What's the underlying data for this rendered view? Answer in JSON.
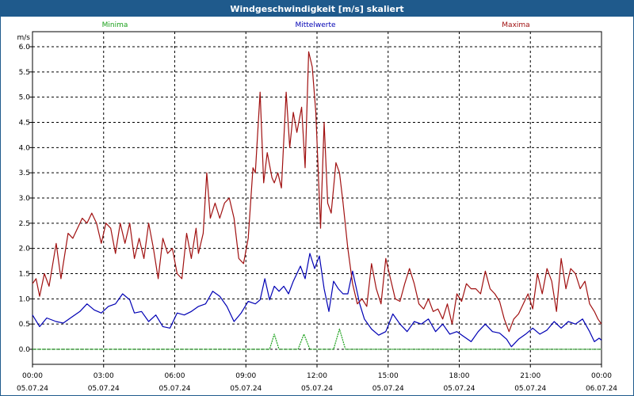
{
  "title": "Windgeschwindigkeit [m/s] skaliert",
  "colors": {
    "header_bg": "#1f5a8c",
    "min": "#1aa01a",
    "mean": "#0000b4",
    "max": "#a01010"
  },
  "chart_data": {
    "type": "line",
    "title": "Windgeschwindigkeit [m/s] skaliert",
    "ylabel": "m/s",
    "ylim": [
      0,
      6.0
    ],
    "xlim_hours": [
      0,
      24
    ],
    "grid": true,
    "legend_placement": "top",
    "y_ticks": [
      "0.0",
      "0.5",
      "1.0",
      "1.5",
      "2.0",
      "2.5",
      "3.0",
      "3.5",
      "4.0",
      "4.5",
      "5.0",
      "5.5",
      "6.0"
    ],
    "x_ticks": [
      {
        "time": "00:00",
        "date": "05.07.24"
      },
      {
        "time": "03:00",
        "date": "05.07.24"
      },
      {
        "time": "06:00",
        "date": "05.07.24"
      },
      {
        "time": "09:00",
        "date": "05.07.24"
      },
      {
        "time": "12:00",
        "date": "05.07.24"
      },
      {
        "time": "15:00",
        "date": "05.07.24"
      },
      {
        "time": "18:00",
        "date": "05.07.24"
      },
      {
        "time": "21:00",
        "date": "05.07.24"
      },
      {
        "time": "00:00",
        "date": "06.07.24"
      }
    ],
    "series": [
      {
        "name": "Minima",
        "color": "#1aa01a",
        "points": [
          [
            0,
            0
          ],
          [
            10,
            0
          ],
          [
            10.2,
            0.3
          ],
          [
            10.4,
            0
          ],
          [
            11.2,
            0
          ],
          [
            11.45,
            0.3
          ],
          [
            11.7,
            0
          ],
          [
            12.7,
            0
          ],
          [
            12.95,
            0.4
          ],
          [
            13.2,
            0
          ],
          [
            24,
            0
          ]
        ]
      },
      {
        "name": "Mittelwerte",
        "color": "#0000b4",
        "points": [
          [
            0.0,
            0.68
          ],
          [
            0.3,
            0.45
          ],
          [
            0.6,
            0.62
          ],
          [
            1.0,
            0.55
          ],
          [
            1.3,
            0.52
          ],
          [
            1.6,
            0.62
          ],
          [
            2.0,
            0.75
          ],
          [
            2.3,
            0.9
          ],
          [
            2.6,
            0.78
          ],
          [
            2.9,
            0.72
          ],
          [
            3.2,
            0.85
          ],
          [
            3.5,
            0.9
          ],
          [
            3.8,
            1.1
          ],
          [
            4.1,
            0.98
          ],
          [
            4.3,
            0.72
          ],
          [
            4.6,
            0.75
          ],
          [
            4.9,
            0.55
          ],
          [
            5.2,
            0.68
          ],
          [
            5.5,
            0.45
          ],
          [
            5.8,
            0.42
          ],
          [
            6.1,
            0.72
          ],
          [
            6.4,
            0.68
          ],
          [
            6.7,
            0.75
          ],
          [
            7.0,
            0.85
          ],
          [
            7.3,
            0.9
          ],
          [
            7.6,
            1.15
          ],
          [
            7.9,
            1.05
          ],
          [
            8.2,
            0.85
          ],
          [
            8.5,
            0.55
          ],
          [
            8.8,
            0.72
          ],
          [
            9.1,
            0.95
          ],
          [
            9.4,
            0.9
          ],
          [
            9.6,
            0.98
          ],
          [
            9.8,
            1.4
          ],
          [
            10.0,
            0.98
          ],
          [
            10.2,
            1.25
          ],
          [
            10.4,
            1.15
          ],
          [
            10.6,
            1.25
          ],
          [
            10.8,
            1.1
          ],
          [
            11.0,
            1.35
          ],
          [
            11.3,
            1.65
          ],
          [
            11.5,
            1.4
          ],
          [
            11.7,
            1.9
          ],
          [
            11.9,
            1.6
          ],
          [
            12.1,
            1.85
          ],
          [
            12.3,
            1.2
          ],
          [
            12.5,
            0.75
          ],
          [
            12.7,
            1.35
          ],
          [
            12.9,
            1.2
          ],
          [
            13.1,
            1.1
          ],
          [
            13.3,
            1.1
          ],
          [
            13.5,
            1.55
          ],
          [
            13.8,
            0.9
          ],
          [
            14.0,
            0.6
          ],
          [
            14.3,
            0.4
          ],
          [
            14.6,
            0.28
          ],
          [
            14.9,
            0.35
          ],
          [
            15.2,
            0.7
          ],
          [
            15.5,
            0.5
          ],
          [
            15.8,
            0.35
          ],
          [
            16.1,
            0.55
          ],
          [
            16.4,
            0.5
          ],
          [
            16.7,
            0.6
          ],
          [
            17.0,
            0.35
          ],
          [
            17.3,
            0.5
          ],
          [
            17.6,
            0.3
          ],
          [
            17.9,
            0.35
          ],
          [
            18.2,
            0.25
          ],
          [
            18.5,
            0.15
          ],
          [
            18.8,
            0.35
          ],
          [
            19.1,
            0.5
          ],
          [
            19.4,
            0.35
          ],
          [
            19.7,
            0.32
          ],
          [
            20.0,
            0.2
          ],
          [
            20.2,
            0.05
          ],
          [
            20.5,
            0.2
          ],
          [
            20.8,
            0.3
          ],
          [
            21.1,
            0.42
          ],
          [
            21.4,
            0.3
          ],
          [
            21.7,
            0.38
          ],
          [
            22.0,
            0.55
          ],
          [
            22.3,
            0.42
          ],
          [
            22.6,
            0.55
          ],
          [
            22.9,
            0.5
          ],
          [
            23.2,
            0.6
          ],
          [
            23.5,
            0.35
          ],
          [
            23.7,
            0.15
          ],
          [
            23.9,
            0.22
          ],
          [
            24.0,
            0.18
          ]
        ]
      },
      {
        "name": "Maxima",
        "color": "#a01010",
        "points": [
          [
            0.0,
            1.3
          ],
          [
            0.15,
            1.4
          ],
          [
            0.3,
            1.05
          ],
          [
            0.5,
            1.5
          ],
          [
            0.7,
            1.25
          ],
          [
            1.0,
            2.1
          ],
          [
            1.2,
            1.4
          ],
          [
            1.5,
            2.3
          ],
          [
            1.7,
            2.2
          ],
          [
            1.9,
            2.4
          ],
          [
            2.1,
            2.6
          ],
          [
            2.3,
            2.5
          ],
          [
            2.5,
            2.7
          ],
          [
            2.7,
            2.5
          ],
          [
            2.9,
            2.1
          ],
          [
            3.1,
            2.5
          ],
          [
            3.3,
            2.4
          ],
          [
            3.5,
            1.9
          ],
          [
            3.7,
            2.5
          ],
          [
            3.9,
            2.1
          ],
          [
            4.1,
            2.5
          ],
          [
            4.3,
            1.8
          ],
          [
            4.5,
            2.2
          ],
          [
            4.7,
            1.8
          ],
          [
            4.9,
            2.5
          ],
          [
            5.1,
            2.0
          ],
          [
            5.3,
            1.4
          ],
          [
            5.5,
            2.2
          ],
          [
            5.7,
            1.9
          ],
          [
            5.9,
            2.0
          ],
          [
            6.1,
            1.5
          ],
          [
            6.3,
            1.4
          ],
          [
            6.5,
            2.3
          ],
          [
            6.7,
            1.8
          ],
          [
            6.9,
            2.4
          ],
          [
            7.0,
            1.9
          ],
          [
            7.2,
            2.3
          ],
          [
            7.35,
            3.5
          ],
          [
            7.5,
            2.6
          ],
          [
            7.7,
            2.9
          ],
          [
            7.9,
            2.6
          ],
          [
            8.1,
            2.9
          ],
          [
            8.3,
            3.0
          ],
          [
            8.5,
            2.6
          ],
          [
            8.7,
            1.8
          ],
          [
            8.9,
            1.7
          ],
          [
            9.1,
            2.2
          ],
          [
            9.3,
            3.6
          ],
          [
            9.4,
            3.5
          ],
          [
            9.6,
            5.1
          ],
          [
            9.75,
            3.3
          ],
          [
            9.9,
            3.9
          ],
          [
            10.1,
            3.4
          ],
          [
            10.2,
            3.3
          ],
          [
            10.35,
            3.5
          ],
          [
            10.5,
            3.2
          ],
          [
            10.7,
            5.1
          ],
          [
            10.85,
            4.0
          ],
          [
            11.0,
            4.7
          ],
          [
            11.15,
            4.3
          ],
          [
            11.35,
            4.8
          ],
          [
            11.5,
            3.6
          ],
          [
            11.65,
            5.9
          ],
          [
            11.8,
            5.6
          ],
          [
            11.95,
            4.7
          ],
          [
            12.15,
            2.4
          ],
          [
            12.3,
            4.5
          ],
          [
            12.45,
            2.9
          ],
          [
            12.6,
            2.7
          ],
          [
            12.8,
            3.7
          ],
          [
            12.95,
            3.5
          ],
          [
            13.1,
            2.9
          ],
          [
            13.3,
            2.0
          ],
          [
            13.5,
            1.3
          ],
          [
            13.7,
            0.9
          ],
          [
            13.9,
            1.0
          ],
          [
            14.1,
            0.85
          ],
          [
            14.3,
            1.7
          ],
          [
            14.5,
            1.2
          ],
          [
            14.7,
            0.9
          ],
          [
            14.9,
            1.8
          ],
          [
            15.1,
            1.4
          ],
          [
            15.3,
            1.0
          ],
          [
            15.5,
            0.95
          ],
          [
            15.7,
            1.3
          ],
          [
            15.9,
            1.6
          ],
          [
            16.1,
            1.3
          ],
          [
            16.3,
            0.9
          ],
          [
            16.5,
            0.8
          ],
          [
            16.7,
            1.0
          ],
          [
            16.9,
            0.75
          ],
          [
            17.1,
            0.8
          ],
          [
            17.3,
            0.6
          ],
          [
            17.5,
            0.9
          ],
          [
            17.7,
            0.5
          ],
          [
            17.9,
            1.1
          ],
          [
            18.1,
            0.95
          ],
          [
            18.3,
            1.3
          ],
          [
            18.5,
            1.2
          ],
          [
            18.7,
            1.2
          ],
          [
            18.9,
            1.1
          ],
          [
            19.1,
            1.55
          ],
          [
            19.3,
            1.2
          ],
          [
            19.5,
            1.1
          ],
          [
            19.7,
            0.95
          ],
          [
            19.9,
            0.6
          ],
          [
            20.1,
            0.35
          ],
          [
            20.3,
            0.6
          ],
          [
            20.5,
            0.7
          ],
          [
            20.7,
            0.9
          ],
          [
            20.9,
            1.1
          ],
          [
            21.1,
            0.8
          ],
          [
            21.3,
            1.5
          ],
          [
            21.5,
            1.1
          ],
          [
            21.7,
            1.6
          ],
          [
            21.9,
            1.35
          ],
          [
            22.1,
            0.75
          ],
          [
            22.3,
            1.8
          ],
          [
            22.5,
            1.2
          ],
          [
            22.7,
            1.6
          ],
          [
            22.9,
            1.5
          ],
          [
            23.1,
            1.2
          ],
          [
            23.3,
            1.35
          ],
          [
            23.5,
            0.9
          ],
          [
            23.7,
            0.75
          ],
          [
            23.85,
            0.6
          ],
          [
            24.0,
            0.5
          ]
        ]
      }
    ]
  }
}
